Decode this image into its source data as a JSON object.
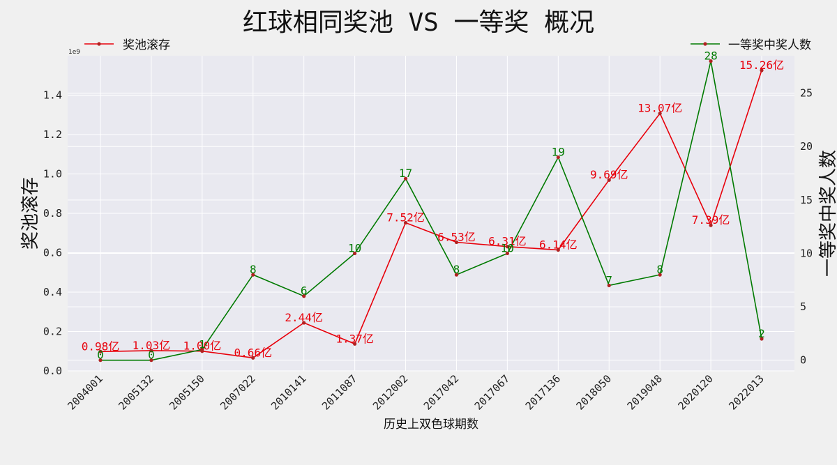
{
  "chart_data": {
    "type": "line",
    "title": "红球相同奖池 VS 一等奖 概况",
    "xlabel": "历史上双色球期数",
    "ylabel_left": "奖池滚存",
    "ylabel_right": "一等奖中奖人数",
    "offset_text_left": "1e9",
    "categories": [
      "2004001",
      "2005132",
      "2005150",
      "2007022",
      "2010141",
      "2011087",
      "2012002",
      "2017042",
      "2017067",
      "2017136",
      "2018050",
      "2019048",
      "2020120",
      "2022013"
    ],
    "ylim_left": [
      0,
      1.6
    ],
    "yticks_left": [
      0.0,
      0.2,
      0.4,
      0.6,
      0.8,
      1.0,
      1.2,
      1.4
    ],
    "ylim_right": [
      -1,
      28.5
    ],
    "yticks_right": [
      0,
      5,
      10,
      15,
      20,
      25
    ],
    "grid": true,
    "series": [
      {
        "name": "奖池滚存",
        "axis": "left",
        "color": "#e8000b",
        "values": [
          0.0981,
          0.1031,
          0.1001,
          0.0661,
          0.2441,
          0.1371,
          0.7521,
          0.6531,
          0.6311,
          0.6141,
          0.9691,
          1.3071,
          0.7391,
          1.5261
        ],
        "labels": [
          "0.98亿",
          "1.03亿",
          "1.00亿",
          "0.66亿",
          "2.44亿",
          "1.37亿",
          "7.52亿",
          "6.53亿",
          "6.31亿",
          "6.14亿",
          "9.69亿",
          "13.07亿",
          "7.39亿",
          "15.26亿"
        ]
      },
      {
        "name": "一等奖中奖人数",
        "axis": "right",
        "color": "#007a00",
        "values": [
          0,
          0,
          1,
          8,
          6,
          10,
          17,
          8,
          10,
          19,
          7,
          8,
          28,
          2
        ],
        "labels": [
          "0",
          "0",
          "1",
          "8",
          "6",
          "10",
          "17",
          "8",
          "10",
          "19",
          "7",
          "8",
          "28",
          "2"
        ]
      }
    ],
    "legend": [
      {
        "label": "奖池滚存",
        "position": "top-left",
        "color": "#e8000b"
      },
      {
        "label": "一等奖中奖人数",
        "position": "top-right",
        "color": "#007a00"
      }
    ],
    "marker_color": "#b22222",
    "plot_background": "#e9e9f0"
  }
}
